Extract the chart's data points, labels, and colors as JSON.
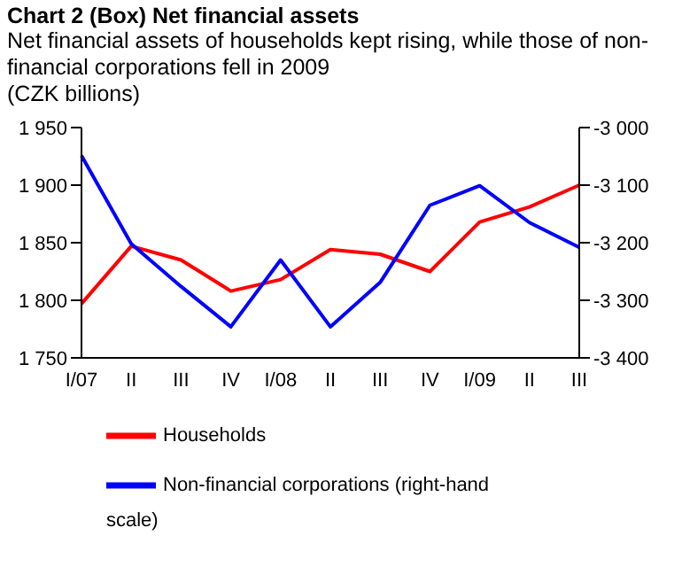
{
  "chart_data": {
    "type": "line",
    "title": "Chart 2 (Box)  Net financial assets",
    "subtitle": "Net financial assets of households kept rising, while those of non-financial corporations fell in 2009",
    "ylabel": "(CZK billions)",
    "categories": [
      "I/07",
      "II",
      "III",
      "IV",
      "I/08",
      "II",
      "III",
      "IV",
      "I/09",
      "II",
      "III"
    ],
    "series": [
      {
        "name": "Households",
        "color": "#ff0000",
        "values": [
          1797,
          1847,
          1835,
          1808,
          1818,
          1844,
          1840,
          1825,
          1868,
          1881,
          1900
        ]
      },
      {
        "name": "Non-financial corporations (right-hand scale)",
        "color": "#0000ff",
        "axis": "y2",
        "values": [
          -3049,
          -3202,
          -3276,
          -3346,
          -3230,
          -3346,
          -3269,
          -3135,
          -3101,
          -3165,
          -3208
        ]
      }
    ],
    "ylim": [
      1750,
      1950
    ],
    "yticks": [
      {
        "value": 1750,
        "label": "1 750"
      },
      {
        "value": 1800,
        "label": "1 800"
      },
      {
        "value": 1850,
        "label": "1 850"
      },
      {
        "value": 1900,
        "label": "1 900"
      },
      {
        "value": 1950,
        "label": "1 950"
      }
    ],
    "y2lim": [
      -3400,
      -3000
    ],
    "y2ticks": [
      {
        "value": -3400,
        "label": "-3 400"
      },
      {
        "value": -3300,
        "label": "-3 300"
      },
      {
        "value": -3200,
        "label": "-3 200"
      },
      {
        "value": -3100,
        "label": "-3 100"
      },
      {
        "value": -3000,
        "label": "-3 000"
      }
    ],
    "grid": false,
    "legend": "bottom",
    "marker": "none",
    "line_style": "solid"
  }
}
